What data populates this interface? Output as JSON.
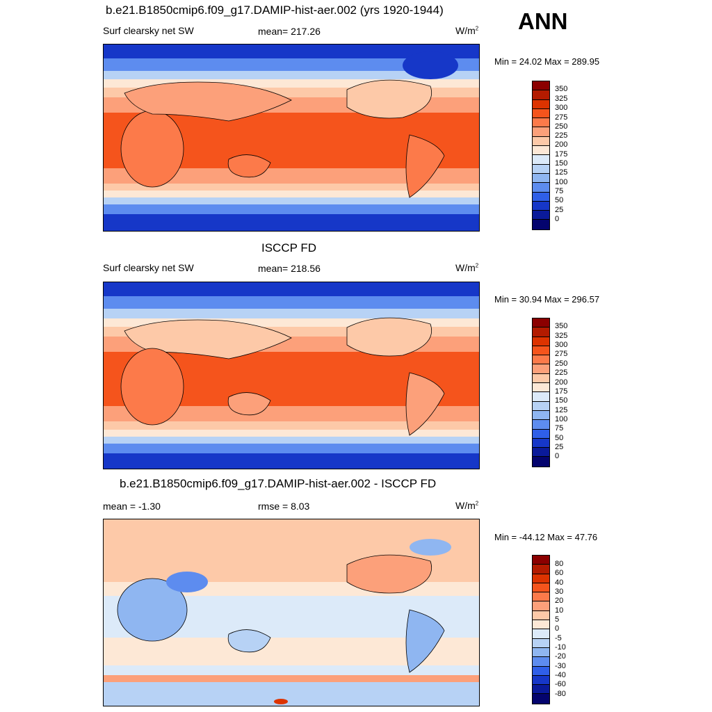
{
  "season": "ANN",
  "panel1": {
    "title": "b.e21.B1850cmip6.f09_g17.DAMIP-hist-aer.002 (yrs 1920-1944)",
    "left": "Surf clearsky net SW",
    "center": "mean= 217.26",
    "units": "W/m",
    "units_sup": "2",
    "minmax": "Min =  24.02 Max = 289.95"
  },
  "panel2": {
    "title": "ISCCP FD",
    "left": "Surf clearsky net SW",
    "center": "mean= 218.56",
    "units": "W/m",
    "units_sup": "2",
    "minmax": "Min =  30.94 Max = 296.57"
  },
  "panel3": {
    "title": "b.e21.B1850cmip6.f09_g17.DAMIP-hist-aer.002 - ISCCP FD",
    "left": "mean =  -1.30",
    "center": "rmse =   8.03",
    "units": "W/m",
    "units_sup": "2",
    "minmax": "Min = -44.12 Max =  47.76"
  },
  "colorbar_abs": {
    "labels": [
      "350",
      "325",
      "300",
      "275",
      "250",
      "225",
      "200",
      "175",
      "150",
      "125",
      "100",
      "75",
      "50",
      "25",
      "0"
    ],
    "colors": [
      "#8b0000",
      "#b31b00",
      "#dd3300",
      "#f5541c",
      "#fc7a4a",
      "#fca07a",
      "#fdc9a8",
      "#fde8d6",
      "#dceaf9",
      "#b7d2f5",
      "#8fb6f1",
      "#5d8cef",
      "#2f5fe8",
      "#1637c8",
      "#0a1a9a",
      "#04046e"
    ]
  },
  "colorbar_diff": {
    "labels": [
      "80",
      "60",
      "40",
      "30",
      "20",
      "10",
      "5",
      "0",
      "-5",
      "-10",
      "-20",
      "-30",
      "-40",
      "-60",
      "-80"
    ],
    "colors": [
      "#8b0000",
      "#b31b00",
      "#dd3300",
      "#f5541c",
      "#fc7a4a",
      "#fca07a",
      "#fdc9a8",
      "#fde8d6",
      "#dceaf9",
      "#b7d2f5",
      "#8fb6f1",
      "#5d8cef",
      "#2f5fe8",
      "#1637c8",
      "#0a1a9a",
      "#04046e"
    ]
  }
}
